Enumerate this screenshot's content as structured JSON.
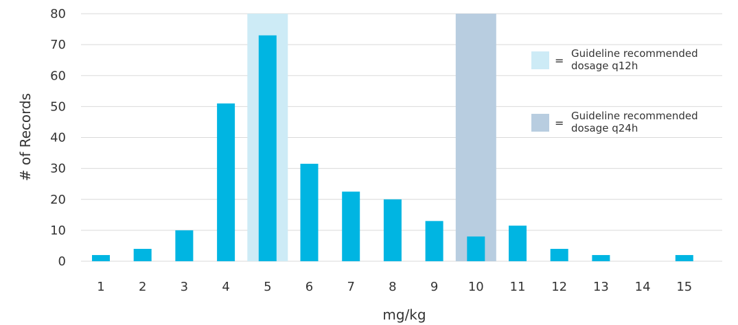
{
  "chart_data": {
    "type": "bar",
    "xlabel": "mg/kg",
    "ylabel": "# of Records",
    "ylim": [
      0,
      80
    ],
    "yticks": [
      0,
      10,
      20,
      30,
      40,
      50,
      60,
      70,
      80
    ],
    "grid": true,
    "categories": [
      "1",
      "2",
      "3",
      "4",
      "5",
      "6",
      "7",
      "8",
      "9",
      "10",
      "11",
      "12",
      "13",
      "14",
      "15"
    ],
    "values": [
      2,
      4,
      10,
      51,
      73,
      31.5,
      22.5,
      20,
      13,
      8,
      11.5,
      4,
      2,
      0,
      2
    ],
    "bar_color": "#00b5e2",
    "highlight_bands": [
      {
        "category": "5",
        "color": "#cdebf6"
      },
      {
        "category": "10",
        "color": "#b8cde0"
      }
    ],
    "legend": {
      "position": "right",
      "equals_sign": "=",
      "items": [
        {
          "color": "#cdebf6",
          "lines": [
            "Guideline recommended",
            "dosage q12h"
          ]
        },
        {
          "color": "#b8cde0",
          "lines": [
            "Guideline recommended",
            "dosage q24h"
          ]
        }
      ]
    }
  }
}
